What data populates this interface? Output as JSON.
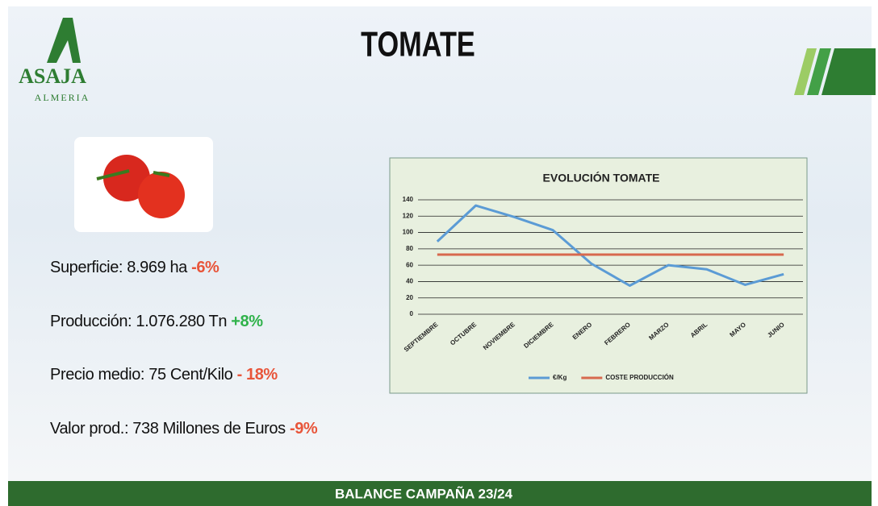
{
  "header": {
    "title": "TOMATE",
    "logo": {
      "name": "ASAJA",
      "region": "ALMERIA"
    }
  },
  "stats": [
    {
      "label": "Superficie: 8.969 ha",
      "change": "-6%",
      "color": "#e8553a"
    },
    {
      "label": "Producción: 1.076.280 Tn",
      "change": "+8%",
      "color": "#2fb24a"
    },
    {
      "label": "Precio medio: 75 Cent/Kilo",
      "change": "- 18%",
      "color": "#e8553a"
    },
    {
      "label": "Valor prod.: 738 Millones de Euros",
      "change": "-9%",
      "color": "#e8553a"
    }
  ],
  "footer": "BALANCE CAMPAÑA 23/24",
  "chart_data": {
    "type": "line",
    "title": "EVOLUCIÓN TOMATE",
    "categories": [
      "SEPTIEMBRE",
      "OCTUBRE",
      "NOVIEMBRE",
      "DICIEMBRE",
      "ENERO",
      "FEBRERO",
      "MARZO",
      "ABRIL",
      "MAYO",
      "JUNIO"
    ],
    "series": [
      {
        "name": "€/Kg",
        "color": "#5b9bd5",
        "values": [
          89,
          133,
          119,
          103,
          62,
          35,
          60,
          55,
          36,
          49
        ]
      },
      {
        "name": "COSTE PRODUCCIÓN",
        "color": "#d7694e",
        "values": [
          73,
          73,
          73,
          73,
          73,
          73,
          73,
          73,
          73,
          73
        ]
      }
    ],
    "ylim": [
      0,
      140
    ],
    "yticks": [
      0,
      20,
      40,
      60,
      80,
      100,
      120,
      140
    ],
    "grid": true,
    "legend": "bottom"
  }
}
